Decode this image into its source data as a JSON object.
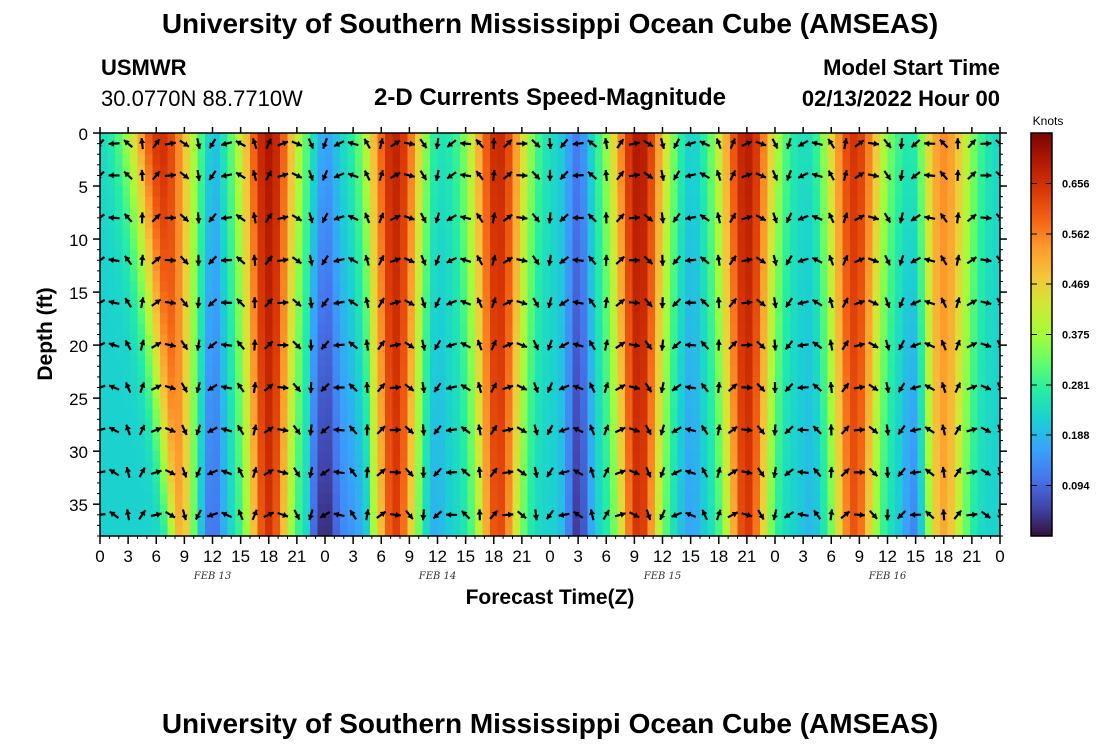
{
  "header": {
    "title": "University of Southern Mississippi Ocean Cube (AMSEAS)",
    "station": "USMWR",
    "coordinates": "30.0770N  88.7710W",
    "plot_title": "2-D Currents Speed-Magnitude",
    "model_start_label": "Model Start Time",
    "model_start_value": "02/13/2022 Hour 00"
  },
  "footer": {
    "title": "University of Southern Mississippi Ocean Cube (AMSEAS)"
  },
  "chart_data": {
    "type": "heatmap",
    "title": "2-D Currents Speed-Magnitude",
    "xlabel": "Forecast Time(Z)",
    "ylabel": "Depth (ft)",
    "xlim": [
      0,
      96
    ],
    "ylim": [
      0,
      38
    ],
    "y_ticks": [
      0,
      5,
      10,
      15,
      20,
      25,
      30,
      35
    ],
    "x_tick_labels": [
      "0",
      "3",
      "6",
      "9",
      "12",
      "15",
      "18",
      "21",
      "0",
      "3",
      "6",
      "9",
      "12",
      "15",
      "18",
      "21",
      "0",
      "3",
      "6",
      "9",
      "12",
      "15",
      "18",
      "21",
      "0",
      "3",
      "6",
      "9",
      "12",
      "15",
      "18",
      "21",
      "0"
    ],
    "day_labels": [
      {
        "label": "FEB 13",
        "hour": 12
      },
      {
        "label": "FEB 14",
        "hour": 36
      },
      {
        "label": "FEB 15",
        "hour": 60
      },
      {
        "label": "FEB 16",
        "hour": 84
      }
    ],
    "colorbar": {
      "unit": "Knots",
      "ticks": [
        0.656,
        0.562,
        0.469,
        0.375,
        0.281,
        0.188,
        0.094
      ],
      "range": [
        0.0,
        0.75
      ],
      "colors": [
        "#30123b",
        "#4145ab",
        "#4675ed",
        "#39a2fc",
        "#1bcfd4",
        "#24eca6",
        "#61fc6c",
        "#a4fc3b",
        "#d1e834",
        "#f3c63a",
        "#fe9b2d",
        "#f36315",
        "#d93806",
        "#b11901",
        "#7a0402"
      ]
    },
    "speed_peaks": [
      {
        "hour": 6.5,
        "speed": 0.66,
        "note": "strong near surface, narrowing with depth"
      },
      {
        "hour": 18,
        "speed": 0.7
      },
      {
        "hour": 31.5,
        "speed": 0.68
      },
      {
        "hour": 42.5,
        "speed": 0.67
      },
      {
        "hour": 57.5,
        "speed": 0.7
      },
      {
        "hour": 69,
        "speed": 0.69
      },
      {
        "hour": 80.5,
        "speed": 0.65
      },
      {
        "hour": 90,
        "speed": 0.55
      }
    ],
    "speed_minima": [
      {
        "hour": 12,
        "speed": 0.12
      },
      {
        "hour": 24,
        "speed": 0.12
      },
      {
        "hour": 35.5,
        "speed": 0.18
      },
      {
        "hour": 51,
        "speed": 0.06
      },
      {
        "hour": 63,
        "speed": 0.18
      },
      {
        "hour": 76,
        "speed": 0.2
      },
      {
        "hour": 87,
        "speed": 0.1
      }
    ],
    "vector_rows_depth_ft": [
      1,
      4,
      8,
      12,
      16,
      20,
      24,
      28,
      32,
      36
    ],
    "vector_cols_hour": [
      0,
      1.5,
      3,
      4.5,
      6,
      7.5,
      9,
      10.5,
      12,
      13.5,
      15,
      16.5,
      18,
      19.5,
      21,
      22.5,
      24,
      25.5,
      27,
      28.5,
      30,
      31.5,
      33,
      34.5,
      36,
      37.5,
      39,
      40.5,
      42,
      43.5,
      45,
      46.5,
      48,
      49.5,
      51,
      52.5,
      54,
      55.5,
      57,
      58.5,
      60,
      61.5,
      63,
      64.5,
      66,
      67.5,
      69,
      70.5,
      72,
      73.5,
      75,
      76.5,
      78,
      79.5,
      81,
      82.5,
      84,
      85.5,
      87,
      88.5,
      90,
      91.5,
      93,
      94.5,
      96
    ]
  }
}
